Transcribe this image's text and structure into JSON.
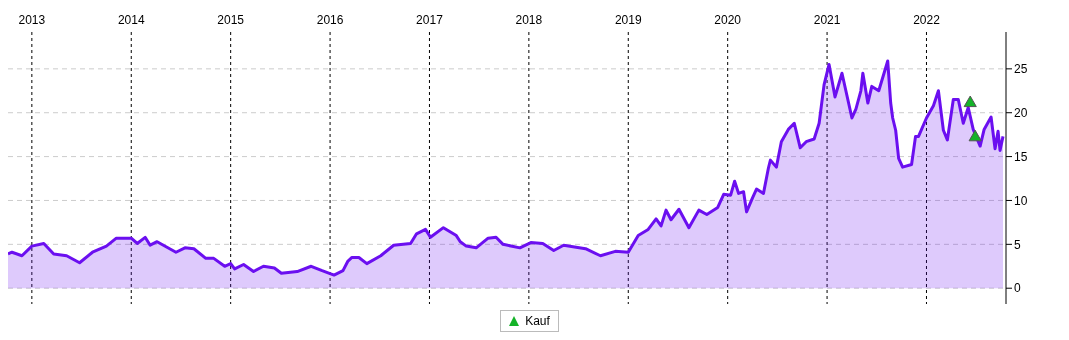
{
  "chart_data": {
    "type": "area",
    "xlim": [
      2012.76,
      2022.8
    ],
    "xticks": [
      2013,
      2014,
      2015,
      2016,
      2017,
      2018,
      2019,
      2020,
      2021,
      2022
    ],
    "ylim": [
      -1.8,
      29.2
    ],
    "yticks": [
      0,
      5,
      10,
      15,
      20,
      25
    ],
    "grid": true,
    "legend": "bottom",
    "series": [
      {
        "color": "#6b0ff0",
        "x": [
          2012.76,
          2012.8,
          2012.9,
          2013.0,
          2013.12,
          2013.22,
          2013.35,
          2013.48,
          2013.61,
          2013.75,
          2013.85,
          2014.0,
          2014.06,
          2014.14,
          2014.19,
          2014.26,
          2014.45,
          2014.54,
          2014.63,
          2014.75,
          2014.83,
          2014.94,
          2015.0,
          2015.04,
          2015.13,
          2015.23,
          2015.33,
          2015.44,
          2015.51,
          2015.67,
          2015.81,
          2015.92,
          2016.04,
          2016.13,
          2016.18,
          2016.22,
          2016.29,
          2016.37,
          2016.51,
          2016.64,
          2016.81,
          2016.87,
          2016.96,
          2017.01,
          2017.14,
          2017.27,
          2017.31,
          2017.37,
          2017.47,
          2017.59,
          2017.67,
          2017.74,
          2017.91,
          2018.02,
          2018.14,
          2018.25,
          2018.35,
          2018.57,
          2018.72,
          2018.87,
          2019.0,
          2019.1,
          2019.2,
          2019.28,
          2019.33,
          2019.38,
          2019.43,
          2019.51,
          2019.61,
          2019.71,
          2019.79,
          2019.9,
          2019.96,
          2020.03,
          2020.07,
          2020.11,
          2020.16,
          2020.19,
          2020.25,
          2020.29,
          2020.36,
          2020.41,
          2020.43,
          2020.49,
          2020.54,
          2020.61,
          2020.67,
          2020.73,
          2020.79,
          2020.87,
          2020.92,
          2020.97,
          2021.02,
          2021.08,
          2021.15,
          2021.25,
          2021.29,
          2021.34,
          2021.36,
          2021.41,
          2021.45,
          2021.52,
          2021.61,
          2021.64,
          2021.66,
          2021.69,
          2021.72,
          2021.76,
          2021.85,
          2021.89,
          2021.92,
          2022.0,
          2022.07,
          2022.12,
          2022.17,
          2022.21,
          2022.27,
          2022.32,
          2022.37,
          2022.42,
          2022.47,
          2022.54,
          2022.58,
          2022.65,
          2022.69,
          2022.72,
          2022.74,
          2022.77
        ],
        "values": [
          3.9,
          4.1,
          3.7,
          4.8,
          5.1,
          3.9,
          3.7,
          2.9,
          4.1,
          4.8,
          5.7,
          5.7,
          5.1,
          5.8,
          4.9,
          5.3,
          4.1,
          4.6,
          4.5,
          3.4,
          3.4,
          2.5,
          2.8,
          2.2,
          2.7,
          1.9,
          2.5,
          2.3,
          1.7,
          1.9,
          2.5,
          2.0,
          1.5,
          2.0,
          3.1,
          3.5,
          3.5,
          2.8,
          3.7,
          4.9,
          5.1,
          6.2,
          6.7,
          5.8,
          6.9,
          6.0,
          5.3,
          4.8,
          4.6,
          5.7,
          5.8,
          5.0,
          4.6,
          5.2,
          5.1,
          4.3,
          4.9,
          4.5,
          3.7,
          4.2,
          4.1,
          6.0,
          6.7,
          7.9,
          7.1,
          8.9,
          7.8,
          9.0,
          6.9,
          8.9,
          8.4,
          9.2,
          10.7,
          10.6,
          12.2,
          10.8,
          11.0,
          8.7,
          10.3,
          11.3,
          10.8,
          13.7,
          14.6,
          13.8,
          16.7,
          18.1,
          18.8,
          16.0,
          16.7,
          17.0,
          18.8,
          23.2,
          25.5,
          21.8,
          24.5,
          19.4,
          20.4,
          22.5,
          24.5,
          21.1,
          23.0,
          22.5,
          25.9,
          21.1,
          19.4,
          18.0,
          14.8,
          13.8,
          14.1,
          17.3,
          17.3,
          19.4,
          20.8,
          22.5,
          18.0,
          16.9,
          21.5,
          21.5,
          18.8,
          20.6,
          18.1,
          16.2,
          18.1,
          19.5,
          15.9,
          17.9,
          15.7,
          17.3
        ]
      },
      {
        "type": "scatter",
        "name": "Kauf",
        "color": "#14b328",
        "marker": "triangle",
        "x": [
          2022.44,
          2022.49
        ],
        "values": [
          21.1,
          17.2
        ]
      }
    ]
  }
}
